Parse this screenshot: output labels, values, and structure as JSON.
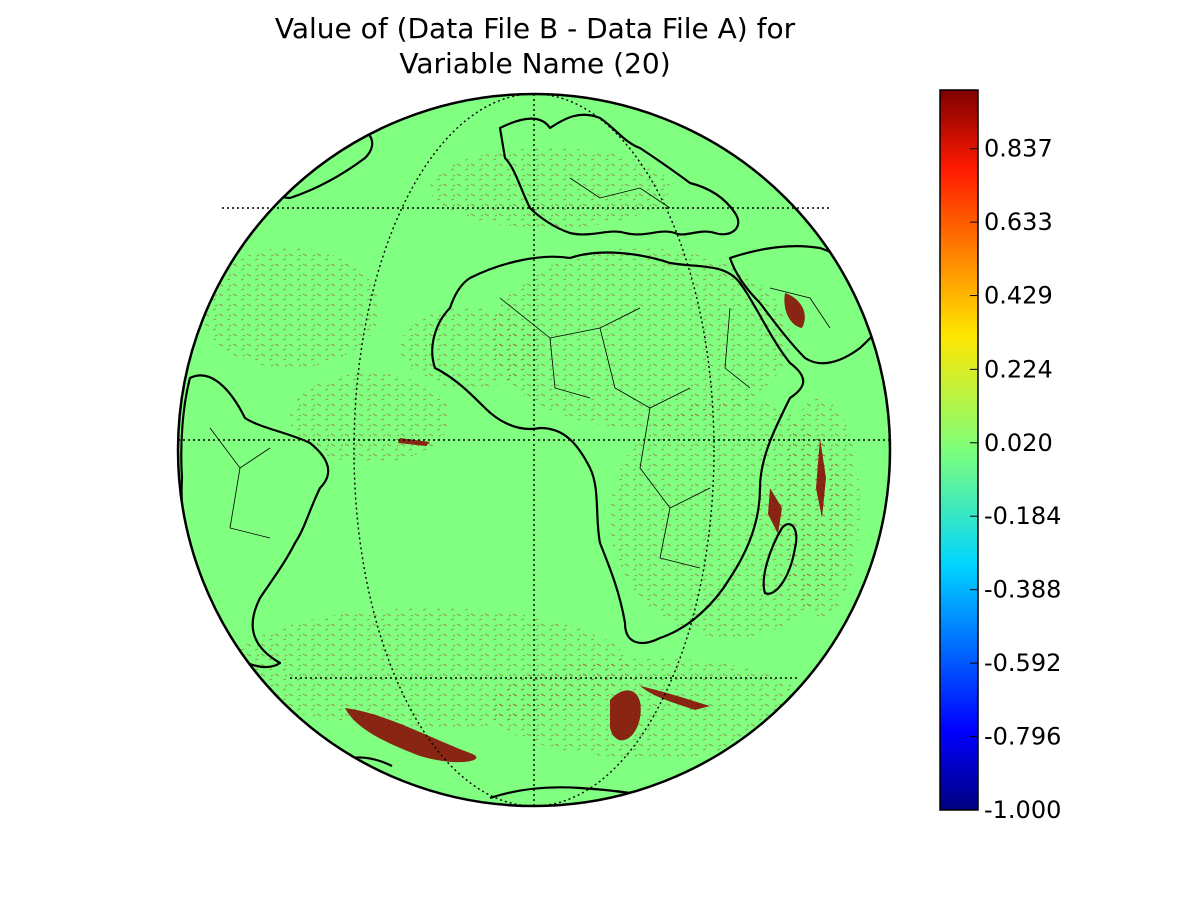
{
  "title": {
    "line1": "Value of (Data File B - Data File A) for",
    "line2": "Variable Name (20)"
  },
  "map": {
    "projection": "orthographic",
    "background_value_color": "#80ff80",
    "anomaly_color": "#8b0000",
    "coastline_color": "#000000",
    "graticule": "dotted"
  },
  "colorbar": {
    "colormap": "jet",
    "range": [
      -1.0,
      1.0
    ],
    "tick_values": [
      0.837,
      0.633,
      0.429,
      0.224,
      0.02,
      -0.184,
      -0.388,
      -0.592,
      -0.796,
      -1.0
    ],
    "tick_labels": [
      "0.837",
      "0.633",
      "0.429",
      "0.224",
      "0.020",
      "-0.184",
      "-0.388",
      "-0.592",
      "-0.796",
      "-1.000"
    ]
  }
}
